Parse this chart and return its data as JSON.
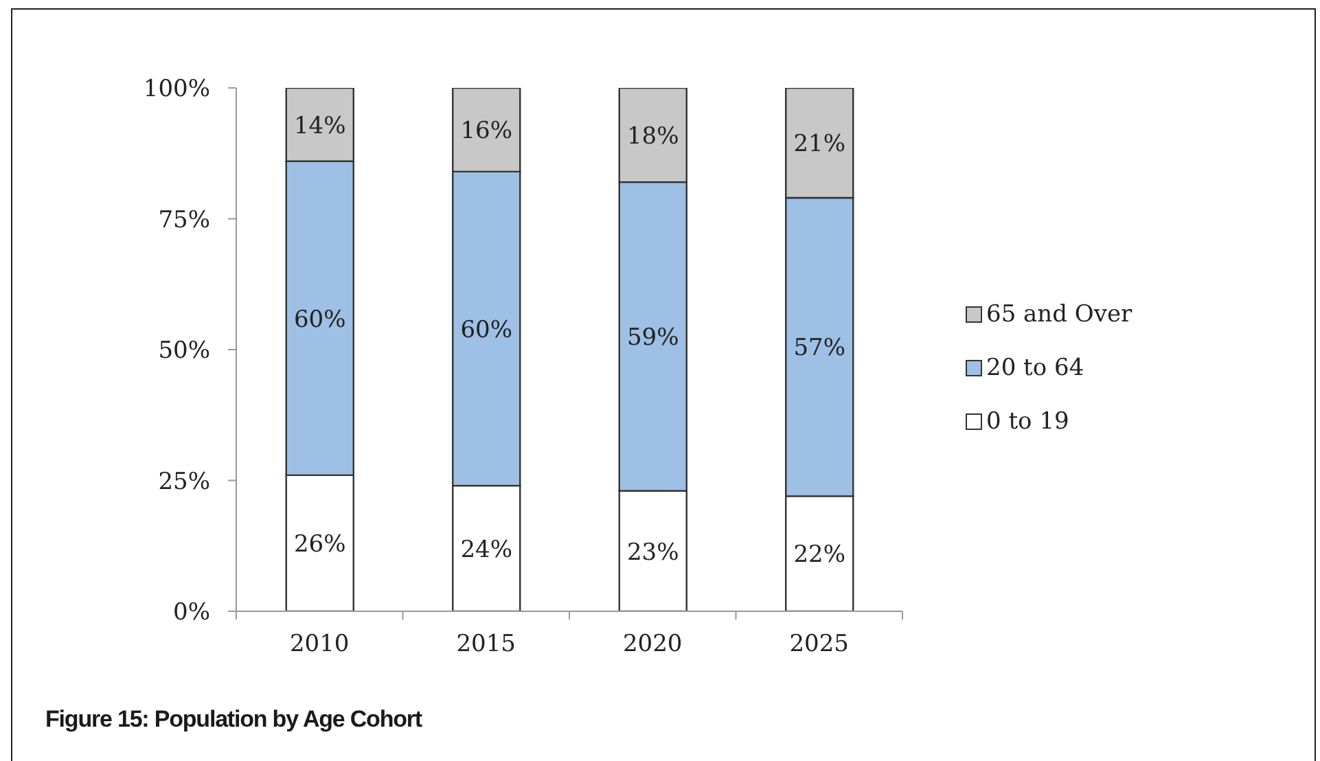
{
  "chart_data": {
    "type": "bar",
    "title": "Figure 15: Population by Age Cohort",
    "categories": [
      "2010",
      "2015",
      "2020",
      "2025"
    ],
    "series": [
      {
        "name": "0 to 19",
        "color": "#ffffff",
        "values": [
          26,
          24,
          23,
          22
        ],
        "value_labels": [
          "26%",
          "24%",
          "23%",
          "22%"
        ]
      },
      {
        "name": "20 to 64",
        "color": "#9ec0e4",
        "values": [
          60,
          60,
          59,
          57
        ],
        "value_labels": [
          "60%",
          "60%",
          "59%",
          "57%"
        ]
      },
      {
        "name": "65 and Over",
        "color": "#c8c8c8",
        "values": [
          14,
          16,
          18,
          21
        ],
        "value_labels": [
          "14%",
          "16%",
          "18%",
          "21%"
        ]
      }
    ],
    "stacked": true,
    "ylim": [
      0,
      100
    ],
    "yticks": [
      {
        "value": 0,
        "label": "0%"
      },
      {
        "value": 25,
        "label": "25%"
      },
      {
        "value": 50,
        "label": "50%"
      },
      {
        "value": 75,
        "label": "75%"
      },
      {
        "value": 100,
        "label": "100%"
      }
    ],
    "legend": "right"
  }
}
